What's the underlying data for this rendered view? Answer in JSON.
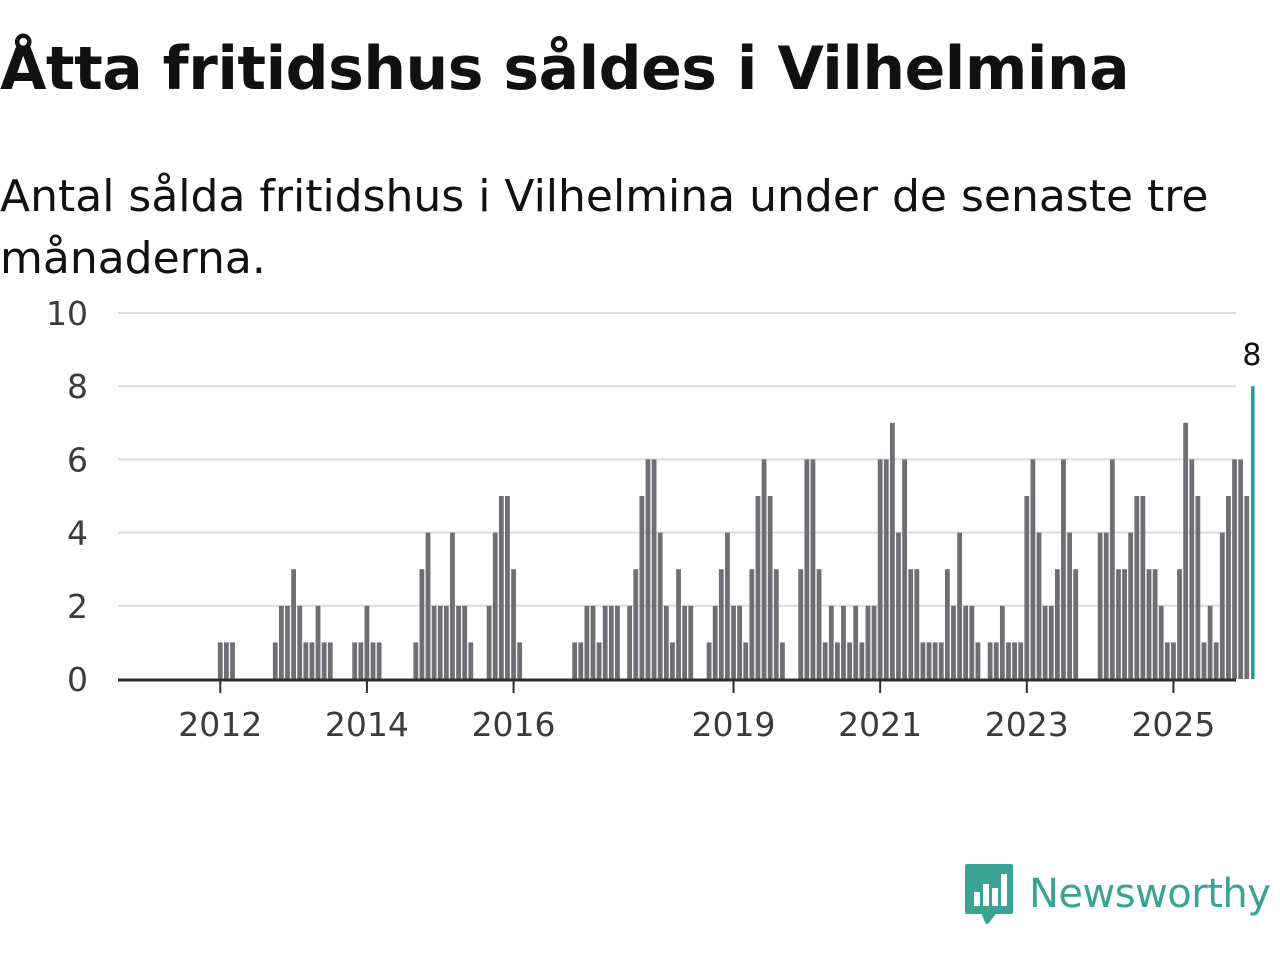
{
  "title": "Åtta fritidshus såldes i Vilhelmina",
  "subtitle": "Antal sålda fritidshus i Vilhelmina under de senaste tre månaderna.",
  "brand": {
    "name": "Newsworthy",
    "color": "#3aa394",
    "icon": "newsworthy-logo-icon"
  },
  "chart_data": {
    "type": "bar",
    "title": "Åtta fritidshus såldes i Vilhelmina",
    "xlabel": "",
    "ylabel": "",
    "ylim": [
      0,
      10
    ],
    "y_ticks": [
      0,
      2,
      4,
      6,
      8,
      10
    ],
    "x_tick_labels": [
      {
        "label": "2012",
        "index": 8
      },
      {
        "label": "2014",
        "index": 32
      },
      {
        "label": "2016",
        "index": 56
      },
      {
        "label": "2019",
        "index": 92
      },
      {
        "label": "2021",
        "index": 116
      },
      {
        "label": "2023",
        "index": 140
      },
      {
        "label": "2025",
        "index": 164
      }
    ],
    "bar_color": "#6f6e73",
    "highlight_color": "#1a9e8f",
    "highlight_label": "8",
    "values": [
      0,
      0,
      0,
      0,
      0,
      0,
      0,
      0,
      1,
      1,
      1,
      0,
      0,
      0,
      0,
      0,
      0,
      1,
      2,
      2,
      3,
      2,
      1,
      1,
      2,
      1,
      1,
      0,
      0,
      0,
      1,
      1,
      2,
      1,
      1,
      0,
      0,
      0,
      0,
      0,
      1,
      3,
      4,
      2,
      2,
      2,
      4,
      2,
      2,
      1,
      0,
      0,
      2,
      4,
      5,
      5,
      3,
      1,
      0,
      0,
      0,
      0,
      0,
      0,
      0,
      0,
      1,
      1,
      2,
      2,
      1,
      2,
      2,
      2,
      0,
      2,
      3,
      5,
      6,
      6,
      4,
      2,
      1,
      3,
      2,
      2,
      0,
      0,
      1,
      2,
      3,
      4,
      2,
      2,
      1,
      3,
      5,
      6,
      5,
      3,
      1,
      0,
      0,
      3,
      6,
      6,
      3,
      1,
      2,
      1,
      2,
      1,
      2,
      1,
      2,
      2,
      6,
      6,
      7,
      4,
      6,
      3,
      3,
      1,
      1,
      1,
      1,
      3,
      2,
      4,
      2,
      2,
      1,
      0,
      1,
      1,
      2,
      1,
      1,
      1,
      5,
      6,
      4,
      2,
      2,
      3,
      6,
      4,
      3,
      0,
      0,
      0,
      4,
      4,
      6,
      3,
      3,
      4,
      5,
      5,
      3,
      3,
      2,
      1,
      1,
      3,
      7,
      6,
      5,
      1,
      2,
      1,
      4,
      5,
      6,
      6,
      5,
      8
    ]
  }
}
